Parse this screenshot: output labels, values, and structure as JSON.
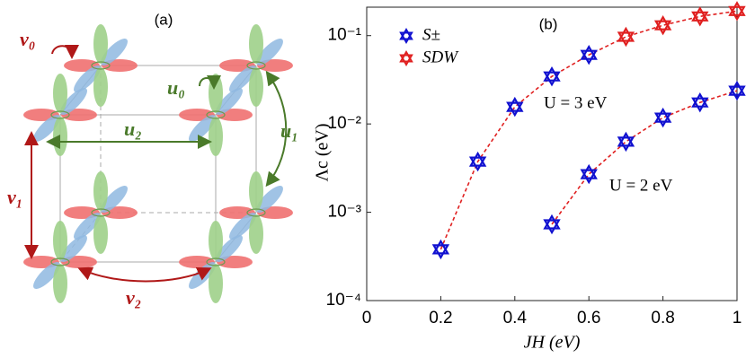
{
  "diagram": {
    "label": "(a)",
    "hoppings": {
      "v0": "v₀",
      "u0": "u₀",
      "u1": "u₁",
      "u2": "u₂",
      "v1": "v₁",
      "v2": "v₂"
    }
  },
  "chart_data": {
    "type": "line",
    "panel_label": "(b)",
    "x_label": "JH (eV)",
    "y_label": "Λc (eV)",
    "log_y": true,
    "xlim": [
      0,
      1
    ],
    "ylim": [
      0.0001,
      0.21
    ],
    "xticks": [
      0,
      0.2,
      0.4,
      0.6,
      0.8,
      1
    ],
    "yticks": [
      {
        "value": 0.0001,
        "label": "10⁻⁴"
      },
      {
        "value": 0.001,
        "label": "10⁻³"
      },
      {
        "value": 0.01,
        "label": "10⁻²"
      },
      {
        "value": 0.1,
        "label": "10⁻¹"
      }
    ],
    "line_color": "#e02020",
    "legend": [
      {
        "name": "S±",
        "color": "#1010d0"
      },
      {
        "name": "SDW",
        "color": "#e02020"
      }
    ],
    "series": [
      {
        "name": "U = 3 eV",
        "x": [
          0.2,
          0.3,
          0.4,
          0.5,
          0.6,
          0.7,
          0.8,
          0.9,
          1
        ],
        "values": [
          0.00038,
          0.00375,
          0.0156,
          0.0345,
          0.0605,
          0.097,
          0.131,
          0.165,
          0.19
        ],
        "phase": [
          0,
          0,
          0,
          0,
          0,
          1,
          1,
          1,
          1
        ]
      },
      {
        "name": "U = 2 eV",
        "x": [
          0.5,
          0.6,
          0.7,
          0.8,
          0.9,
          1
        ],
        "values": [
          0.00073,
          0.0027,
          0.0063,
          0.0118,
          0.0175,
          0.0238
        ],
        "phase": [
          0,
          0,
          0,
          0,
          0,
          0
        ]
      }
    ]
  }
}
